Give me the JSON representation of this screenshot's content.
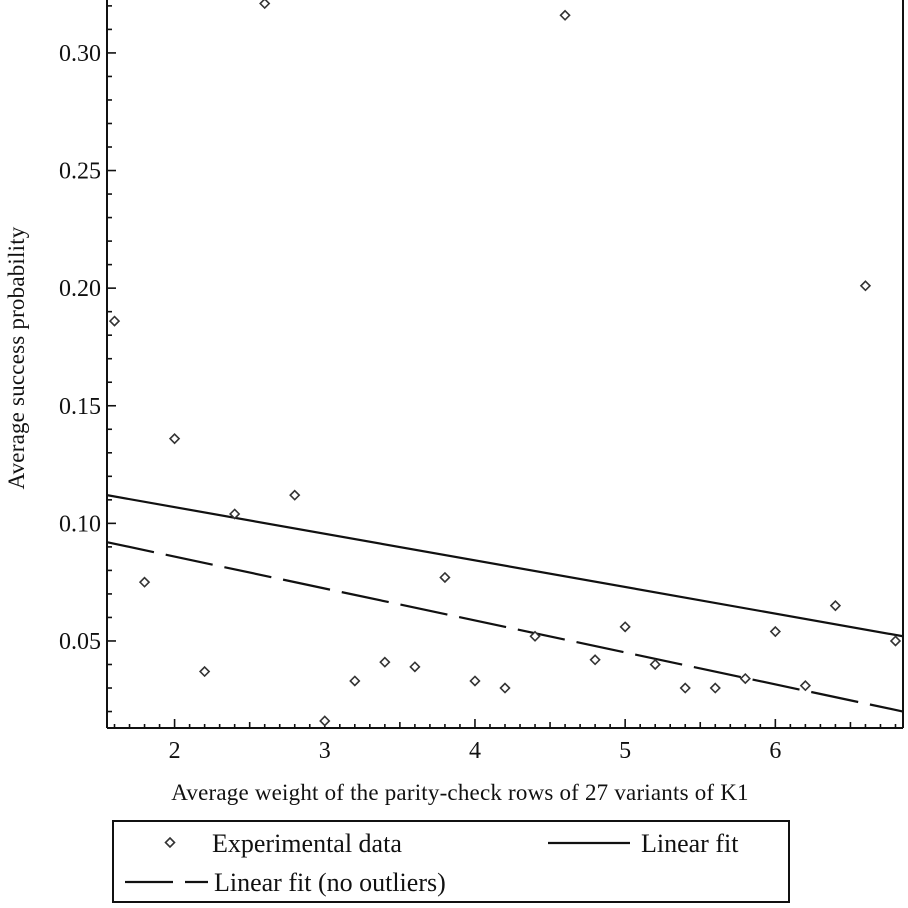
{
  "chart_data": {
    "type": "scatter",
    "title": "",
    "xlabel": "Average weight of the parity-check rows of 27 variants of K1",
    "ylabel": "Average success probability",
    "xlim": [
      1.55,
      6.85
    ],
    "ylim": [
      0.013,
      0.3225
    ],
    "x_ticks": [
      {
        "value": 2,
        "label": "2"
      },
      {
        "value": 3,
        "label": "3"
      },
      {
        "value": 4,
        "label": "4"
      },
      {
        "value": 5,
        "label": "5"
      },
      {
        "value": 6,
        "label": "6"
      }
    ],
    "y_ticks": [
      {
        "value": 0.05,
        "label": "0.05"
      },
      {
        "value": 0.1,
        "label": "0.10"
      },
      {
        "value": 0.15,
        "label": "0.15"
      },
      {
        "value": 0.2,
        "label": "0.20"
      },
      {
        "value": 0.25,
        "label": "0.25"
      },
      {
        "value": 0.3,
        "label": "0.30"
      }
    ],
    "grid": false,
    "legend_position": "bottom",
    "series": [
      {
        "name": "Experimental data",
        "kind": "points",
        "marker": "diamond",
        "color": "#333333",
        "points": [
          {
            "x": 1.6,
            "y": 0.186
          },
          {
            "x": 1.8,
            "y": 0.075
          },
          {
            "x": 2.0,
            "y": 0.136
          },
          {
            "x": 2.2,
            "y": 0.037
          },
          {
            "x": 2.4,
            "y": 0.104
          },
          {
            "x": 2.6,
            "y": 0.321
          },
          {
            "x": 2.8,
            "y": 0.112
          },
          {
            "x": 3.0,
            "y": 0.016
          },
          {
            "x": 3.2,
            "y": 0.033
          },
          {
            "x": 3.4,
            "y": 0.041
          },
          {
            "x": 3.6,
            "y": 0.039
          },
          {
            "x": 3.8,
            "y": 0.077
          },
          {
            "x": 4.0,
            "y": 0.033
          },
          {
            "x": 4.2,
            "y": 0.03
          },
          {
            "x": 4.4,
            "y": 0.052
          },
          {
            "x": 4.6,
            "y": 0.316
          },
          {
            "x": 4.8,
            "y": 0.042
          },
          {
            "x": 5.0,
            "y": 0.056
          },
          {
            "x": 5.2,
            "y": 0.04
          },
          {
            "x": 5.4,
            "y": 0.03
          },
          {
            "x": 5.6,
            "y": 0.03
          },
          {
            "x": 5.8,
            "y": 0.034
          },
          {
            "x": 6.0,
            "y": 0.054
          },
          {
            "x": 6.2,
            "y": 0.031
          },
          {
            "x": 6.4,
            "y": 0.065
          },
          {
            "x": 6.6,
            "y": 0.201
          },
          {
            "x": 6.8,
            "y": 0.05
          }
        ]
      },
      {
        "name": "Linear fit",
        "kind": "line",
        "dash": "solid",
        "color": "#111111",
        "points": [
          {
            "x": 1.55,
            "y": 0.112
          },
          {
            "x": 6.85,
            "y": 0.052
          }
        ]
      },
      {
        "name": "Linear fit (no outliers)",
        "kind": "line",
        "dash": "dashed",
        "color": "#111111",
        "points": [
          {
            "x": 1.55,
            "y": 0.092
          },
          {
            "x": 6.85,
            "y": 0.02
          }
        ]
      }
    ]
  }
}
